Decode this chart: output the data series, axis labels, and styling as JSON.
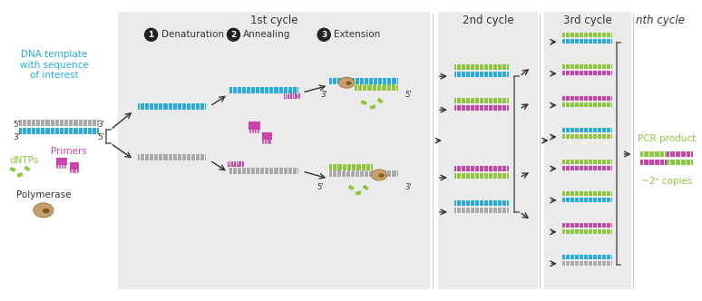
{
  "bg_white": "#ffffff",
  "bg_panel": "#EBEBEB",
  "color_cyan": "#29ABE2",
  "color_gray": "#AAAAAA",
  "color_magenta": "#CC44AA",
  "color_green": "#8DC63F",
  "color_tan": "#C8A070",
  "color_dark": "#333333",
  "cycle1_label": "1st cycle",
  "cycle2_label": "2nd cycle",
  "cycle3_label": "3rd cycle",
  "cyclen_label": "nth cycle",
  "step1_label": "Denaturation",
  "step2_label": "Annealing",
  "step3_label": "Extension",
  "dna_label": "DNA template\nwith sequence\nof interest",
  "dntps_label": "dNTPs",
  "primers_label": "Primers",
  "polymerase_label": "Polymerase",
  "pcr_product_label": "PCR product",
  "copies_label": "~2ⁿ copies"
}
